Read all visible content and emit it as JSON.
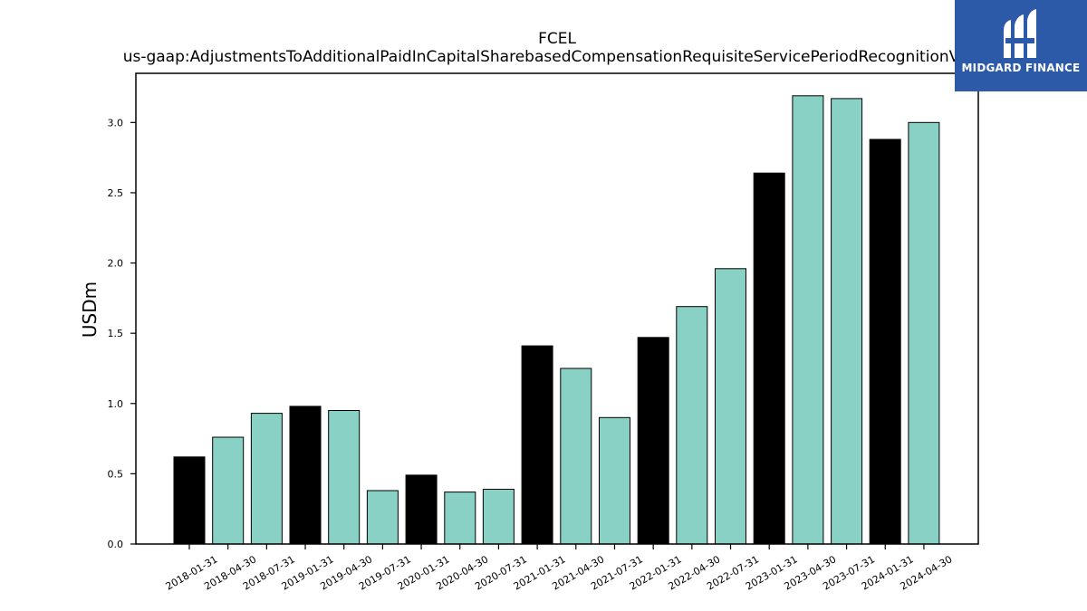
{
  "chart_data": {
    "type": "bar",
    "title": "FCEL",
    "subtitle": "us-gaap:AdjustmentsToAdditionalPaidInCapitalSharebasedCompensationRequisiteServicePeriodRecognitionValue",
    "xlabel": "",
    "ylabel": "USDm",
    "ylim": [
      0,
      3.35
    ],
    "yticks": [
      "0.0",
      "0.5",
      "1.0",
      "1.5",
      "2.0",
      "2.5",
      "3.0"
    ],
    "grid": false,
    "categories": [
      "2018-01-31",
      "2018-04-30",
      "2018-07-31",
      "2019-01-31",
      "2019-04-30",
      "2019-07-31",
      "2020-01-31",
      "2020-04-30",
      "2020-07-31",
      "2021-01-31",
      "2021-04-30",
      "2021-07-31",
      "2022-01-31",
      "2022-04-30",
      "2022-07-31",
      "2023-01-31",
      "2023-04-30",
      "2023-07-31",
      "2024-01-31",
      "2024-04-30"
    ],
    "values": [
      0.62,
      0.76,
      0.93,
      0.98,
      0.95,
      0.38,
      0.49,
      0.37,
      0.39,
      1.41,
      1.25,
      0.9,
      1.47,
      1.69,
      1.96,
      2.64,
      3.19,
      3.17,
      2.88,
      3.0
    ],
    "bar_colors": [
      "#000000",
      "#8ad1c5",
      "#8ad1c5",
      "#000000",
      "#8ad1c5",
      "#8ad1c5",
      "#000000",
      "#8ad1c5",
      "#8ad1c5",
      "#000000",
      "#8ad1c5",
      "#8ad1c5",
      "#000000",
      "#8ad1c5",
      "#8ad1c5",
      "#000000",
      "#8ad1c5",
      "#8ad1c5",
      "#000000",
      "#8ad1c5"
    ]
  },
  "logo": {
    "text": "MIDGARD FINANCE",
    "background": "#2d5aa8"
  }
}
